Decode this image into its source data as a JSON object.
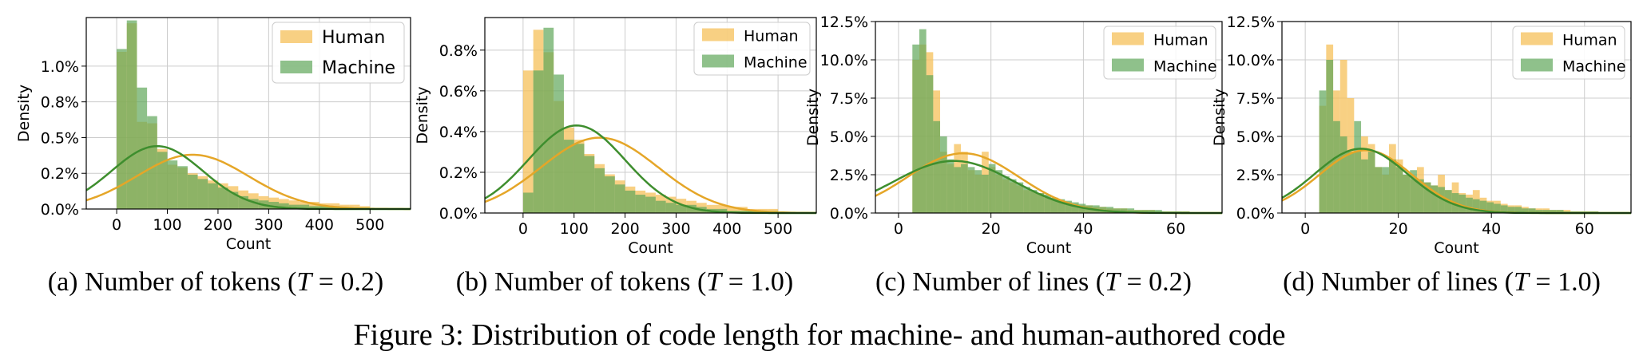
{
  "figure_caption": "Figure 3: Distribution of code length for machine- and human-authored code",
  "colors": {
    "human": "#F5C05A",
    "machine": "#5FA65A",
    "human_line": "#E5A628",
    "machine_line": "#3E8E2E",
    "grid": "#cccccc"
  },
  "chart_data": [
    {
      "type": "bar",
      "subcaption": "(a) Number of tokens (T = 0.2)",
      "caption_prefix": "(a) Number of tokens (",
      "caption_var": "T",
      "caption_suffix": " = 0.2)",
      "xlabel": "Count",
      "ylabel": "Density",
      "xlim": [
        -60,
        580
      ],
      "ylim": [
        0,
        0.0134
      ],
      "xticks": [
        0,
        100,
        200,
        300,
        400,
        500
      ],
      "xticklabels": [
        "0",
        "100",
        "200",
        "300",
        "400",
        "500"
      ],
      "yticks": [
        0,
        0.0025,
        0.005,
        0.0075,
        0.01
      ],
      "yticklabels": [
        "0.0%",
        "0.2%",
        "0.5%",
        "0.8%",
        "1.0%"
      ],
      "legend": [
        "Human",
        "Machine"
      ],
      "legend_position": "top-right",
      "grid": true,
      "series": [
        {
          "name": "Human",
          "bin_start": 0,
          "bin_width": 20,
          "values": [
            0.011,
            0.013,
            0.0061,
            0.006,
            0.0042,
            0.0031,
            0.0029,
            0.0025,
            0.0023,
            0.002,
            0.0018,
            0.0016,
            0.0013,
            0.0011,
            0.0009,
            0.0008,
            0.0007,
            0.0006,
            0.0005,
            0.0005,
            0.0004,
            0.0004,
            0.0003,
            0.0003,
            0.0002
          ]
        },
        {
          "name": "Machine",
          "bin_start": 0,
          "bin_width": 20,
          "values": [
            0.0112,
            0.0132,
            0.0085,
            0.0065,
            0.004,
            0.0034,
            0.003,
            0.0024,
            0.0021,
            0.0018,
            0.0015,
            0.0012,
            0.0009,
            0.0007,
            0.0006,
            0.0005,
            0.0004,
            0.0003,
            0.0003,
            0.0002,
            0.0002,
            0.0002,
            0.0001,
            0.0001,
            0.0001
          ]
        }
      ],
      "kde": [
        {
          "name": "Human",
          "mean": 150,
          "sd": 110,
          "peak": 0.0038
        },
        {
          "name": "Machine",
          "mean": 80,
          "sd": 90,
          "peak": 0.0044
        }
      ]
    },
    {
      "type": "bar",
      "subcaption": "(b) Number of tokens (T = 1.0)",
      "caption_prefix": "(b) Number of tokens (",
      "caption_var": "T",
      "caption_suffix": " = 1.0)",
      "xlabel": "Count",
      "ylabel": "Density",
      "xlim": [
        -75,
        575
      ],
      "ylim": [
        0,
        0.0096
      ],
      "xticks": [
        0,
        100,
        200,
        300,
        400,
        500
      ],
      "xticklabels": [
        "0",
        "100",
        "200",
        "300",
        "400",
        "500"
      ],
      "yticks": [
        0,
        0.002,
        0.004,
        0.006,
        0.008
      ],
      "yticklabels": [
        "0.0%",
        "0.2%",
        "0.4%",
        "0.6%",
        "0.8%"
      ],
      "legend": [
        "Human",
        "Machine"
      ],
      "legend_position": "top-right",
      "grid": true,
      "series": [
        {
          "name": "Human",
          "bin_start": 0,
          "bin_width": 20,
          "values": [
            0.007,
            0.009,
            0.0079,
            0.0055,
            0.0042,
            0.0036,
            0.0029,
            0.0024,
            0.0019,
            0.0016,
            0.0013,
            0.0011,
            0.001,
            0.0009,
            0.0008,
            0.0007,
            0.0006,
            0.0005,
            0.0004,
            0.0004,
            0.0003,
            0.0003,
            0.0002,
            0.0002,
            0.0002
          ]
        },
        {
          "name": "Machine",
          "bin_start": 0,
          "bin_width": 20,
          "values": [
            0.001,
            0.007,
            0.0091,
            0.0068,
            0.0036,
            0.0034,
            0.0028,
            0.0022,
            0.0018,
            0.0014,
            0.0011,
            0.0009,
            0.0008,
            0.0006,
            0.0005,
            0.0004,
            0.0004,
            0.0003,
            0.0002,
            0.0002,
            0.0001,
            0.0001,
            0.0001,
            0.0001,
            0.0001
          ]
        }
      ],
      "kde": [
        {
          "name": "Human",
          "mean": 150,
          "sd": 115,
          "peak": 0.0037
        },
        {
          "name": "Machine",
          "mean": 105,
          "sd": 95,
          "peak": 0.0043
        }
      ]
    },
    {
      "type": "bar",
      "subcaption": "(c) Number of lines (T = 0.2)",
      "caption_prefix": "(c) Number of lines (",
      "caption_var": "T",
      "caption_suffix": " = 0.2)",
      "xlabel": "Count",
      "ylabel": "Density",
      "xlim": [
        -5,
        70
      ],
      "ylim": [
        0,
        0.125
      ],
      "xticks": [
        0,
        20,
        40,
        60
      ],
      "xticklabels": [
        "0",
        "20",
        "40",
        "60"
      ],
      "yticks": [
        0,
        0.025,
        0.05,
        0.075,
        0.1,
        0.125
      ],
      "yticklabels": [
        "0.0%",
        "2.5%",
        "5.0%",
        "7.5%",
        "10.0%",
        "12.5%"
      ],
      "legend": [
        "Human",
        "Machine"
      ],
      "legend_position": "top-right",
      "grid": true,
      "series": [
        {
          "name": "Human",
          "bin_start": 3,
          "bin_width": 1.5,
          "values": [
            0.1,
            0.11,
            0.105,
            0.08,
            0.04,
            0.032,
            0.045,
            0.04,
            0.028,
            0.025,
            0.04,
            0.03,
            0.025,
            0.022,
            0.02,
            0.018,
            0.015,
            0.014,
            0.013,
            0.01,
            0.01,
            0.008,
            0.007,
            0.006,
            0.005,
            0.005,
            0.004,
            0.004,
            0.003,
            0.003,
            0.003,
            0.002,
            0.002,
            0.002,
            0.002,
            0.001,
            0.001,
            0.001,
            0.001,
            0.001
          ]
        },
        {
          "name": "Machine",
          "bin_start": 3,
          "bin_width": 1.5,
          "values": [
            0.11,
            0.12,
            0.09,
            0.06,
            0.05,
            0.035,
            0.03,
            0.032,
            0.03,
            0.028,
            0.025,
            0.032,
            0.028,
            0.024,
            0.022,
            0.02,
            0.017,
            0.015,
            0.013,
            0.012,
            0.01,
            0.009,
            0.008,
            0.007,
            0.006,
            0.005,
            0.005,
            0.004,
            0.004,
            0.003,
            0.003,
            0.003,
            0.002,
            0.002,
            0.002,
            0.002,
            0.001,
            0.001,
            0.001,
            0.001
          ]
        }
      ],
      "kde": [
        {
          "name": "Human",
          "mean": 14,
          "sd": 12,
          "peak": 0.039
        },
        {
          "name": "Machine",
          "mean": 12,
          "sd": 13,
          "peak": 0.034
        }
      ]
    },
    {
      "type": "bar",
      "subcaption": "(d) Number of lines (T = 1.0)",
      "caption_prefix": "(d) Number of lines (",
      "caption_var": "T",
      "caption_suffix": " = 1.0)",
      "xlabel": "Count",
      "ylabel": "Density",
      "xlim": [
        -5,
        70
      ],
      "ylim": [
        0,
        0.125
      ],
      "xticks": [
        0,
        20,
        40,
        60
      ],
      "xticklabels": [
        "0",
        "20",
        "40",
        "60"
      ],
      "yticks": [
        0,
        0.025,
        0.05,
        0.075,
        0.1,
        0.125
      ],
      "yticklabels": [
        "0.0%",
        "2.5%",
        "5.0%",
        "7.5%",
        "10.0%",
        "12.5%"
      ],
      "legend": [
        "Human",
        "Machine"
      ],
      "legend_position": "top-right",
      "grid": true,
      "series": [
        {
          "name": "Human",
          "bin_start": 3,
          "bin_width": 1.5,
          "values": [
            0.07,
            0.11,
            0.08,
            0.1,
            0.075,
            0.04,
            0.05,
            0.045,
            0.03,
            0.025,
            0.045,
            0.035,
            0.025,
            0.022,
            0.03,
            0.02,
            0.018,
            0.025,
            0.015,
            0.02,
            0.013,
            0.012,
            0.015,
            0.01,
            0.008,
            0.008,
            0.006,
            0.005,
            0.005,
            0.004,
            0.003,
            0.003,
            0.003,
            0.002,
            0.002,
            0.002,
            0.001,
            0.001,
            0.001,
            0.001
          ]
        },
        {
          "name": "Machine",
          "bin_start": 3,
          "bin_width": 1.5,
          "values": [
            0.08,
            0.1,
            0.06,
            0.05,
            0.04,
            0.06,
            0.035,
            0.04,
            0.03,
            0.03,
            0.035,
            0.03,
            0.025,
            0.028,
            0.022,
            0.02,
            0.018,
            0.017,
            0.015,
            0.013,
            0.012,
            0.01,
            0.009,
            0.008,
            0.007,
            0.006,
            0.005,
            0.004,
            0.004,
            0.003,
            0.003,
            0.002,
            0.002,
            0.002,
            0.002,
            0.001,
            0.001,
            0.001,
            0.001,
            0.001
          ]
        }
      ],
      "kde": [
        {
          "name": "Human",
          "mean": 13,
          "sd": 10,
          "peak": 0.041
        },
        {
          "name": "Machine",
          "mean": 12,
          "sd": 10,
          "peak": 0.042
        }
      ]
    }
  ]
}
